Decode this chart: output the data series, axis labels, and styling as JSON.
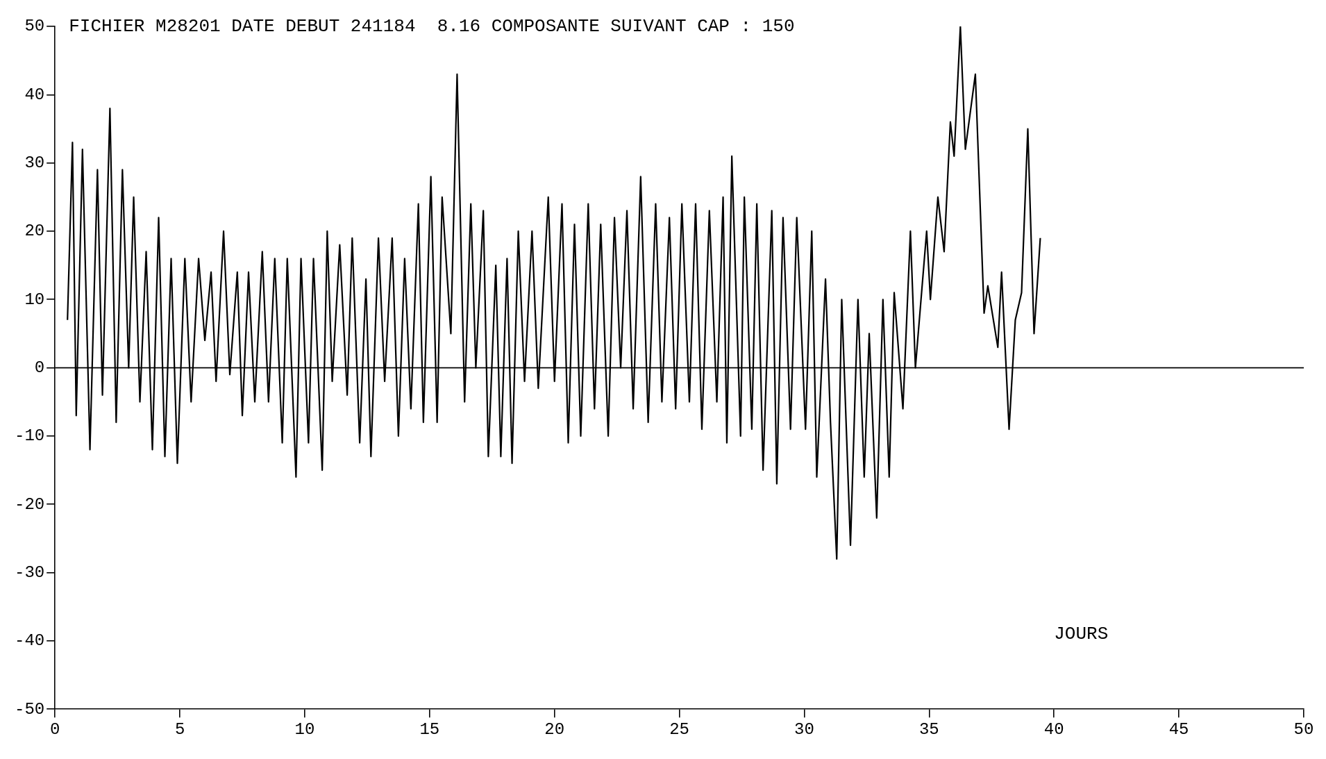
{
  "chart_data": {
    "type": "line",
    "title": "FICHIER M28201 DATE DEBUT 241184  8.16 COMPOSANTE SUIVANT CAP : 150",
    "xlabel": "JOURS",
    "x": [
      0.5,
      0.7,
      0.85,
      1.1,
      1.4,
      1.7,
      1.9,
      2.2,
      2.45,
      2.7,
      2.95,
      3.15,
      3.4,
      3.65,
      3.9,
      4.15,
      4.4,
      4.65,
      4.9,
      5.2,
      5.45,
      5.75,
      6.0,
      6.25,
      6.45,
      6.75,
      7.0,
      7.3,
      7.5,
      7.75,
      8.0,
      8.3,
      8.55,
      8.8,
      9.1,
      9.3,
      9.65,
      9.85,
      10.15,
      10.35,
      10.7,
      10.9,
      11.1,
      11.4,
      11.7,
      11.9,
      12.2,
      12.45,
      12.65,
      12.95,
      13.2,
      13.5,
      13.75,
      14.0,
      14.25,
      14.55,
      14.75,
      15.05,
      15.3,
      15.5,
      15.85,
      16.1,
      16.4,
      16.65,
      16.85,
      17.15,
      17.35,
      17.65,
      17.85,
      18.1,
      18.3,
      18.55,
      18.8,
      19.1,
      19.35,
      19.75,
      20.0,
      20.3,
      20.55,
      20.8,
      21.05,
      21.35,
      21.6,
      21.85,
      22.15,
      22.4,
      22.65,
      22.9,
      23.15,
      23.45,
      23.75,
      24.05,
      24.3,
      24.6,
      24.85,
      25.1,
      25.4,
      25.65,
      25.9,
      26.2,
      26.5,
      26.75,
      26.9,
      27.1,
      27.45,
      27.6,
      27.9,
      28.1,
      28.35,
      28.7,
      28.9,
      29.15,
      29.45,
      29.7,
      30.05,
      30.3,
      30.5,
      30.85,
      31.05,
      31.3,
      31.5,
      31.85,
      32.15,
      32.4,
      32.6,
      32.9,
      33.15,
      33.4,
      33.6,
      33.95,
      34.25,
      34.45,
      34.9,
      35.05,
      35.35,
      35.6,
      35.85,
      36.0,
      36.25,
      36.45,
      36.85,
      37.2,
      37.35,
      37.75,
      37.9,
      38.2,
      38.45,
      38.7,
      38.95,
      39.2,
      39.45
    ],
    "values": [
      7,
      33,
      -7,
      32,
      -12,
      29,
      -4,
      38,
      -8,
      29,
      0,
      25,
      -5,
      17,
      -12,
      22,
      -13,
      16,
      -14,
      16,
      -5,
      16,
      4,
      14,
      -2,
      20,
      -1,
      14,
      -7,
      14,
      -5,
      17,
      -5,
      16,
      -11,
      16,
      -16,
      16,
      -11,
      16,
      -15,
      20,
      -2,
      18,
      -4,
      19,
      -11,
      13,
      -13,
      19,
      -2,
      19,
      -10,
      16,
      -6,
      24,
      -8,
      28,
      -8,
      25,
      5,
      43,
      -5,
      24,
      0,
      23,
      -13,
      15,
      -13,
      16,
      -14,
      20,
      -2,
      20,
      -3,
      25,
      -2,
      24,
      -11,
      21,
      -10,
      24,
      -6,
      21,
      -10,
      22,
      0,
      23,
      -6,
      28,
      -8,
      24,
      -5,
      22,
      -6,
      24,
      -5,
      24,
      -9,
      23,
      -5,
      25,
      -11,
      31,
      -10,
      25,
      -9,
      24,
      -15,
      23,
      -17,
      22,
      -9,
      22,
      -9,
      20,
      -16,
      13,
      -8,
      -28,
      10,
      -26,
      10,
      -16,
      5,
      -22,
      10,
      -16,
      11,
      -6,
      20,
      0,
      20,
      10,
      25,
      17,
      36,
      31,
      50,
      32,
      43,
      8,
      12,
      3,
      14,
      -9,
      7,
      11,
      35,
      5,
      19
    ],
    "color": "#000000",
    "xlim": [
      0,
      50
    ],
    "xticks": [
      0,
      5,
      10,
      15,
      20,
      25,
      30,
      35,
      40,
      45,
      50
    ],
    "ylim": [
      -50,
      50
    ],
    "yticks": [
      -50,
      -40,
      -30,
      -20,
      -10,
      0,
      10,
      20,
      30,
      40,
      50
    ],
    "ref_lines": [
      {
        "axis": "y",
        "value": 0
      }
    ],
    "grid": false,
    "legend": false,
    "marker": "none",
    "line_style": "solid"
  }
}
